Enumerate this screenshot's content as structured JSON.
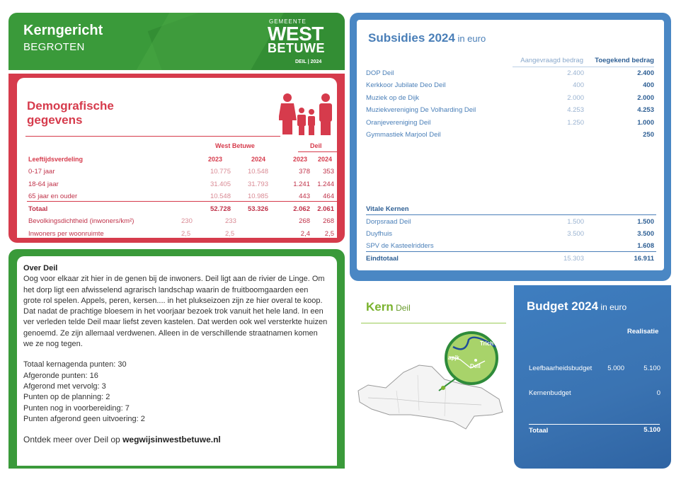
{
  "header": {
    "title": "Kerngericht",
    "subtitle": "BEGROTEN",
    "logo_top": "GEMEENTE",
    "logo_line1": "WEST",
    "logo_line2": "BETUWE",
    "logo_foot": "DEIL | 2024"
  },
  "demographics": {
    "title_line1": "Demografische",
    "title_line2": "gegevens",
    "group_wb": "West Betuwe",
    "group_deil": "Deil",
    "years": [
      "2023",
      "2024",
      "2023",
      "2024"
    ],
    "section_label": "Leeftijdsverdeling",
    "rows": [
      {
        "label": "0-17 jaar",
        "wb2023": "10.775",
        "wb2024": "10.548",
        "d2023": "378",
        "d2024": "353"
      },
      {
        "label": "18-64 jaar",
        "wb2023": "31.405",
        "wb2024": "31.793",
        "d2023": "1.241",
        "d2024": "1.244"
      },
      {
        "label": "65 jaar en ouder",
        "wb2023": "10.548",
        "wb2024": "10.985",
        "d2023": "443",
        "d2024": "464"
      },
      {
        "label": "Totaal",
        "wb2023": "52.728",
        "wb2024": "53.326",
        "d2023": "2.062",
        "d2024": "2.061"
      },
      {
        "label": "Bevolkingsdichtheid (inwoners/km²)",
        "wb2023": "230",
        "wb2024": "233",
        "d2023": "268",
        "d2024": "268"
      },
      {
        "label": "Inwoners per woonruimte",
        "wb2023": "2,5",
        "wb2024": "2,5",
        "d2023": "2,4",
        "d2024": "2,5"
      }
    ]
  },
  "over": {
    "heading": "Over Deil",
    "body": "Oog voor elkaar zit hier in de genen bij de inwoners. Deil ligt aan de rivier de Linge. Om het dorp ligt een afwisselend agrarisch landschap waarin de fruitboomgaarden een grote rol spelen. Appels, peren, kersen.... in het plukseizoen zijn ze hier overal te koop. Dat nadat de prachtige bloesem in het voorjaar bezoek trok vanuit het hele land. In een ver verleden telde Deil maar liefst zeven kastelen. Dat werden ook wel versterkte huizen genoemd. Ze zijn allemaal verdwenen. Alleen in de verschillende straatnamen komen we ze nog tegen.",
    "stats": [
      "Totaal kernagenda punten: 30",
      "Afgeronde punten: 16",
      "Afgerond met vervolg: 3",
      "Punten op de planning: 2",
      "Punten nog in voorbereiding: 7",
      "Punten afgerond geen uitvoering: 2"
    ],
    "footer_text": "Ontdek meer over Deil op ",
    "footer_link": "wegwijsinwestbetuwe.nl"
  },
  "subsidies": {
    "title": "Subsidies 2024",
    "title_unit": " in euro",
    "col_requested": "Aangevraagd bedrag",
    "col_granted": "Toegekend bedrag",
    "rows": [
      {
        "name": "DOP Deil",
        "requested": "2.400",
        "granted": "2.400"
      },
      {
        "name": "Kerkkoor Jubilate Deo Deil",
        "requested": "400",
        "granted": "400"
      },
      {
        "name": "Muziek op de Dijk",
        "requested": "2.000",
        "granted": "2.000"
      },
      {
        "name": "Muziekvereniging De Volharding Deil",
        "requested": "4.253",
        "granted": "4.253"
      },
      {
        "name": "Oranjevereniging Deil",
        "requested": "1.250",
        "granted": "1.000"
      },
      {
        "name": "Gymmastiek Marjool Deil",
        "requested": "",
        "granted": "250"
      }
    ],
    "vital_heading": "Vitale Kernen",
    "vital_rows": [
      {
        "name": "Dorpsraad Deil",
        "requested": "1.500",
        "granted": "1.500"
      },
      {
        "name": "Duyfhuis",
        "requested": "3.500",
        "granted": "3.500"
      },
      {
        "name": "SPV de Kasteelridders",
        "requested": "",
        "granted": "1.608"
      }
    ],
    "total_label": "Eindtotaal",
    "total_requested": "15.303",
    "total_granted": "16.911"
  },
  "kern": {
    "title": "Kern",
    "subtitle": " Deil",
    "map_labels": [
      "apjk",
      "Trich",
      "Deil"
    ]
  },
  "budget": {
    "title": "Budget 2024",
    "title_unit": " in euro",
    "col_realisatie": "Realisatie",
    "rows": [
      {
        "label": "Leefbaarheidsbudget",
        "budget": "5.000",
        "realisatie": "5.100"
      },
      {
        "label": "Kernenbudget",
        "budget": "",
        "realisatie": "0"
      }
    ],
    "total_label": "Totaal",
    "total_value": "5.100"
  },
  "colors": {
    "green": "#3a9a3a",
    "red": "#d63b4c",
    "blue": "#4a87c4",
    "lime": "#7ab32e"
  }
}
